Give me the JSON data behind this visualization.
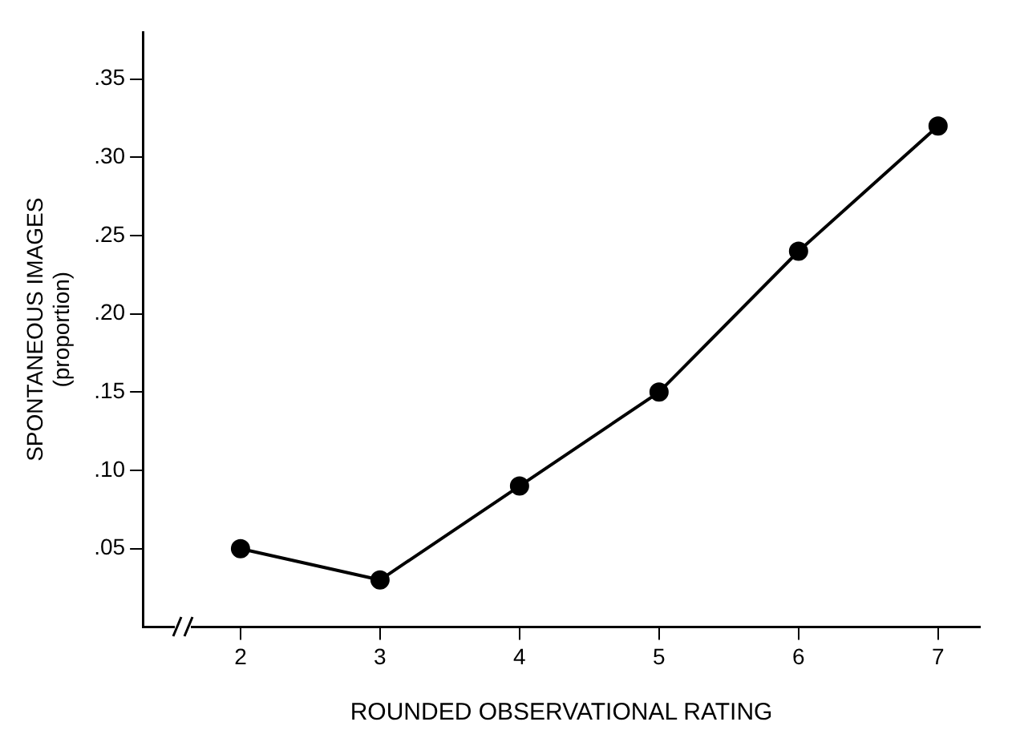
{
  "chart_data": {
    "type": "line",
    "xlabel": "ROUNDED OBSERVATIONAL RATING",
    "ylabel": "SPONTANEOUS IMAGES\n(proportion)",
    "x": [
      2,
      3,
      4,
      5,
      6,
      7
    ],
    "series": [
      {
        "color": "#000000",
        "values": [
          0.05,
          0.03,
          0.09,
          0.15,
          0.24,
          0.32
        ]
      }
    ],
    "xlim": [
      1.3,
      7.3
    ],
    "xticks": [
      2,
      3,
      4,
      5,
      6,
      7
    ],
    "ylim": [
      0,
      0.38
    ],
    "yticks": [
      {
        "value": 0.05,
        "label": ".05"
      },
      {
        "value": 0.1,
        "label": ".10"
      },
      {
        "value": 0.15,
        "label": ".15"
      },
      {
        "value": 0.2,
        "label": ".20"
      },
      {
        "value": 0.25,
        "label": ".25"
      },
      {
        "value": 0.3,
        "label": ".30"
      },
      {
        "value": 0.35,
        "label": ".35"
      }
    ],
    "grid": false,
    "legend": false,
    "marker": "circle",
    "line_style": "solid"
  }
}
